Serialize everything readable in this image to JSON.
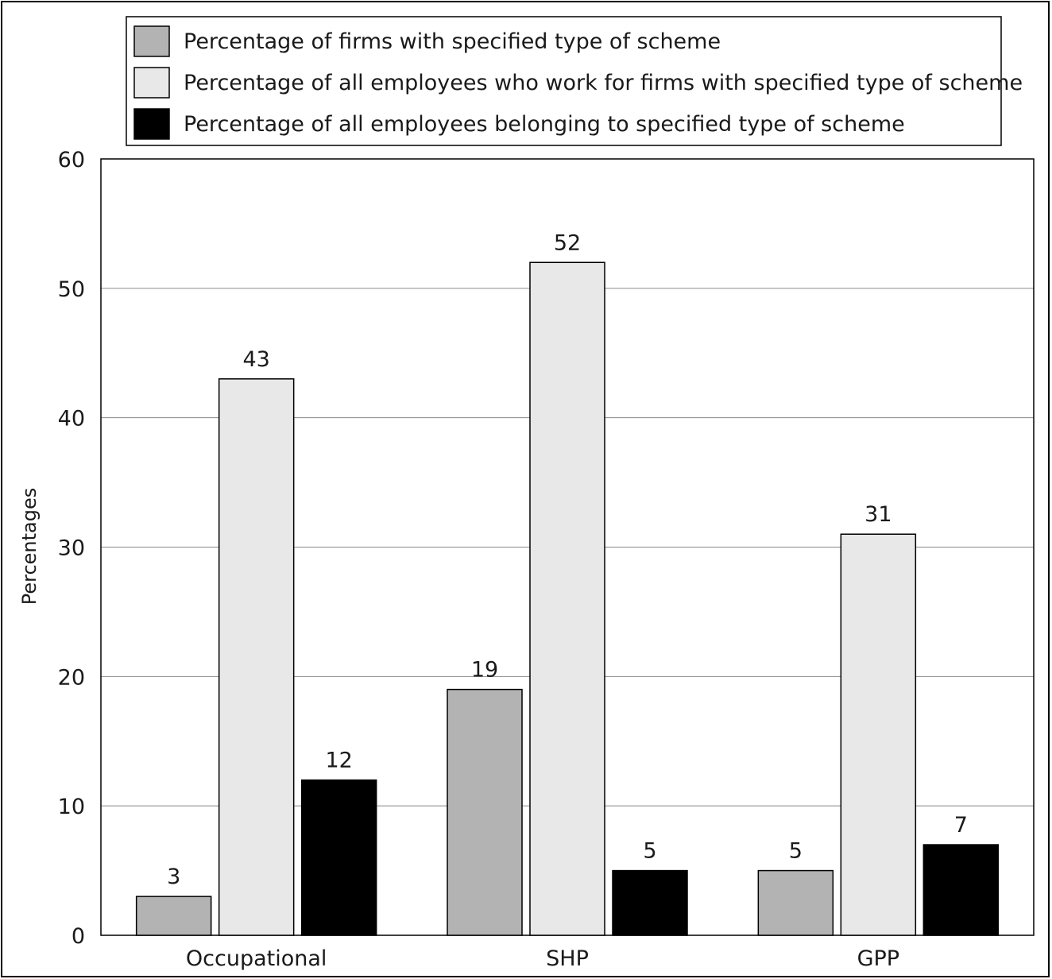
{
  "chart_data": {
    "type": "bar",
    "title": "",
    "xlabel": "",
    "ylabel": "Percentages",
    "ylim": [
      0,
      60
    ],
    "yticks": [
      0,
      10,
      20,
      30,
      40,
      50,
      60
    ],
    "grid": true,
    "legend_position": "top",
    "categories": [
      "Occupational",
      "SHP",
      "GPP"
    ],
    "series": [
      {
        "name": "Percentage of firms with specified type of scheme",
        "color": "#b3b3b3",
        "values": [
          3,
          19,
          5
        ]
      },
      {
        "name": "Percentage of all employees who work for firms with specified type of scheme",
        "color": "#e8e8e8",
        "values": [
          43,
          52,
          31
        ]
      },
      {
        "name": "Percentage of all employees belonging to specified type of scheme",
        "color": "#000000",
        "values": [
          12,
          5,
          7
        ]
      }
    ]
  }
}
